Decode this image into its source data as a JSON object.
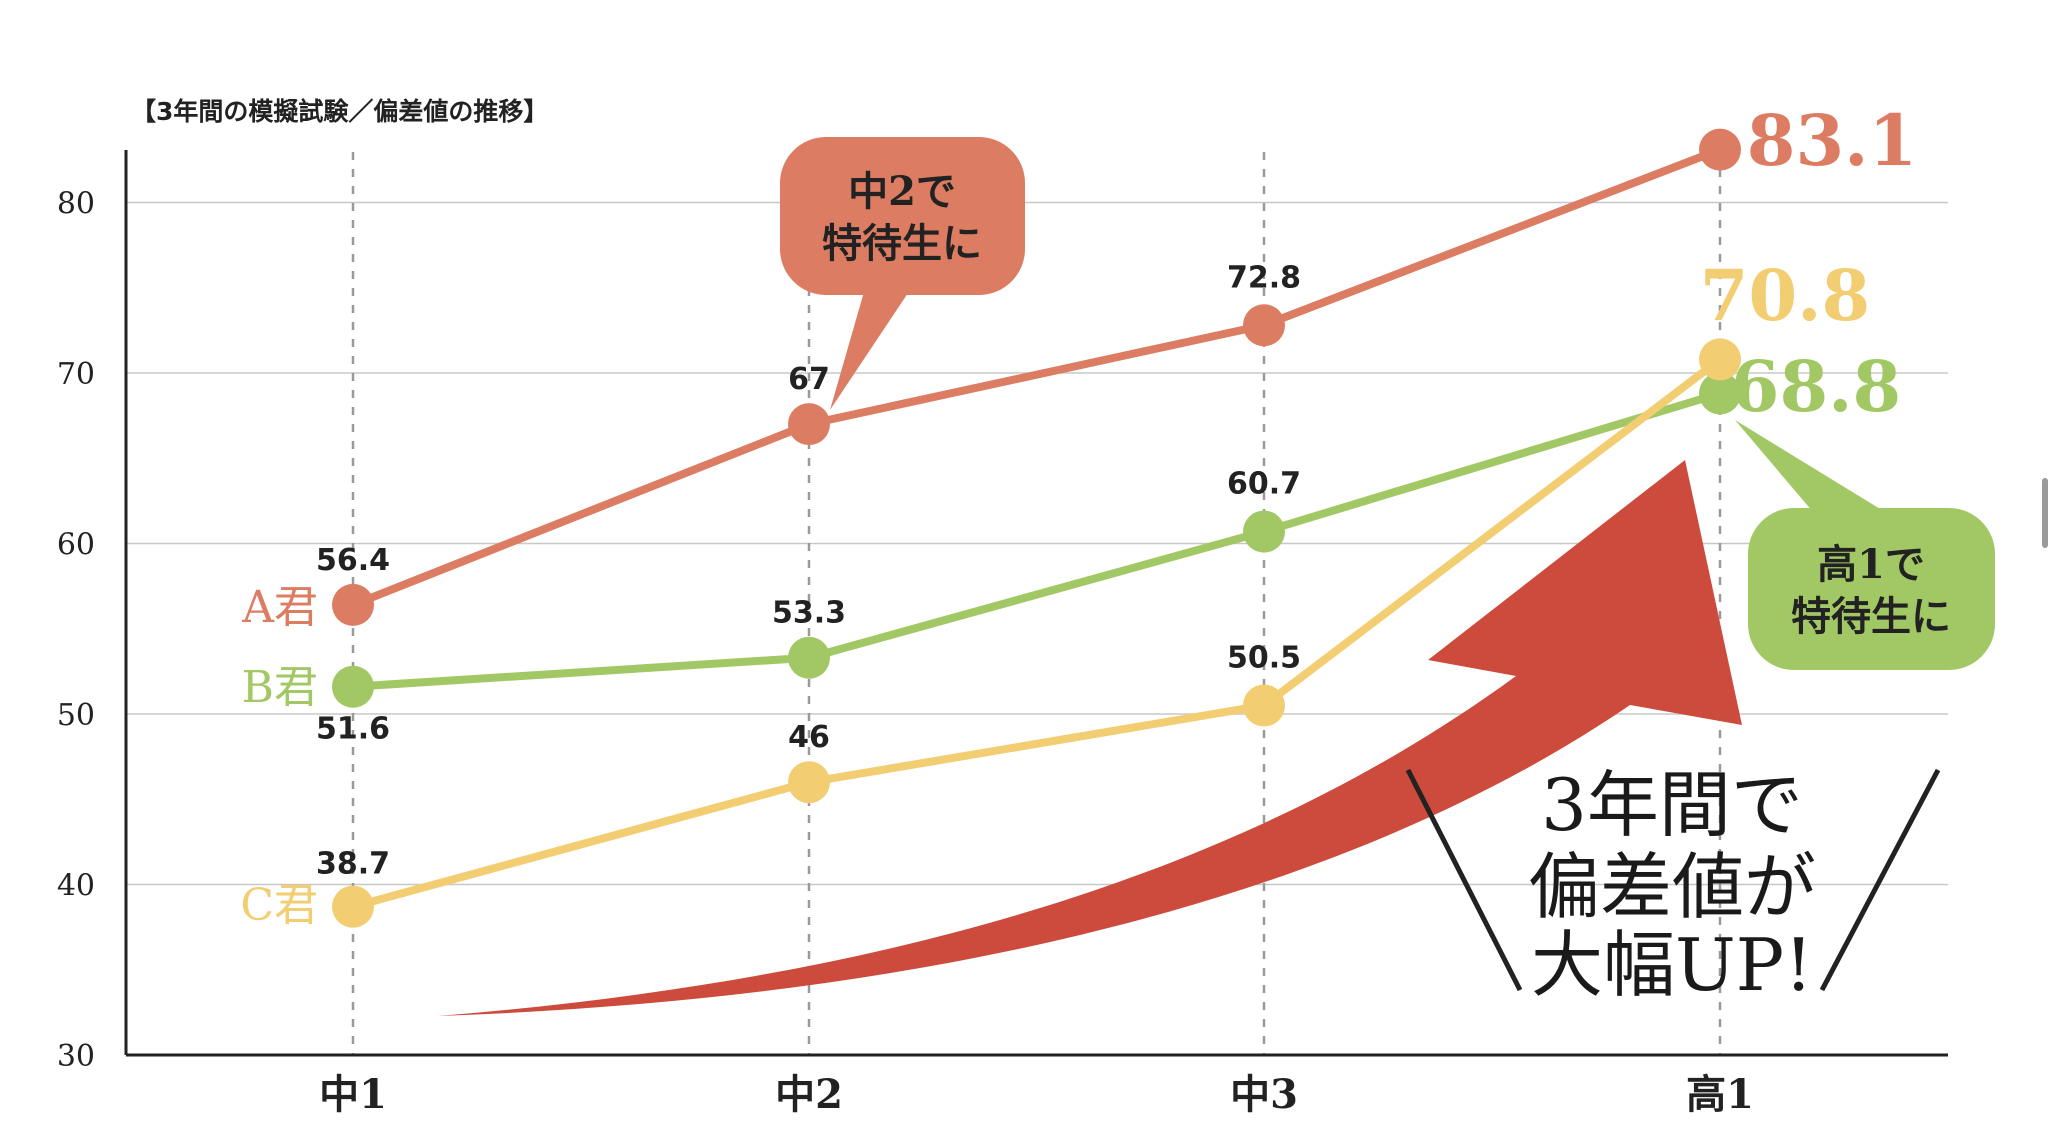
{
  "chart_data": {
    "type": "line",
    "title": "【3年間の模擬試験／偏差値の推移】",
    "categories": [
      "中1",
      "中2",
      "中3",
      "高1"
    ],
    "ylim": [
      30,
      83.1
    ],
    "yticks": [
      30,
      40,
      50,
      60,
      70,
      80
    ],
    "grid": true,
    "series": [
      {
        "name": "A君",
        "color": "#dc7d63",
        "values": [
          56.4,
          67,
          72.8,
          83.1
        ],
        "labels": [
          "56.4",
          "67",
          "72.8",
          "83.1"
        ]
      },
      {
        "name": "B君",
        "color": "#a2c865",
        "values": [
          51.6,
          53.3,
          60.7,
          68.8
        ],
        "labels": [
          "51.6",
          "53.3",
          "60.7",
          "68.8"
        ]
      },
      {
        "name": "C君",
        "color": "#f2cd72",
        "values": [
          38.7,
          46,
          50.5,
          70.8
        ],
        "labels": [
          "38.7",
          "46",
          "50.5",
          "70.8"
        ]
      }
    ],
    "annotations": {
      "callout_a": [
        "中2で",
        "特待生に"
      ],
      "callout_b": [
        "高1で",
        "特待生に"
      ],
      "arrow_text": [
        "3年間で",
        "偏差値が",
        "大幅UP!"
      ]
    },
    "colors": {
      "arrow": "#cd4b3c",
      "axis": "#222222",
      "grid": "#c8c8c8"
    }
  }
}
